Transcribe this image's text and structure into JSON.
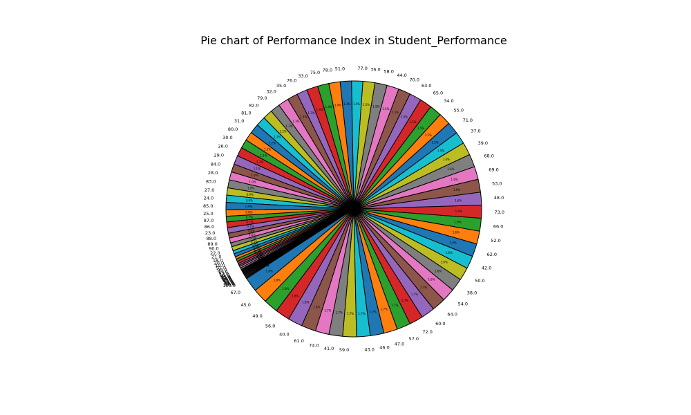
{
  "chart_data": {
    "type": "pie",
    "title": "Pie chart of Performance Index in Student_Performance",
    "counts_note": "",
    "categories": [
      "67.0",
      "45.0",
      "49.0",
      "56.0",
      "40.0",
      "61.0",
      "74.0",
      "41.0",
      "59.0",
      "43.0",
      "46.0",
      "47.0",
      "57.0",
      "72.0",
      "60.0",
      "64.0",
      "54.0",
      "38.0",
      "50.0",
      "42.0",
      "62.0",
      "52.0",
      "66.0",
      "73.0",
      "48.0",
      "53.0",
      "69.0",
      "68.0",
      "39.0",
      "37.0",
      "71.0",
      "55.0",
      "34.0",
      "65.0",
      "63.0",
      "70.0",
      "44.0",
      "58.0",
      "36.0",
      "77.0",
      "51.0",
      "78.0",
      "75.0",
      "33.0",
      "76.0",
      "35.0",
      "32.0",
      "79.0",
      "82.0",
      "81.0",
      "31.0",
      "80.0",
      "30.0",
      "26.0",
      "29.0",
      "84.0",
      "28.0",
      "83.0",
      "27.0",
      "24.0",
      "85.0",
      "25.0",
      "87.0",
      "86.0",
      "23.0",
      "88.0",
      "89.0",
      "90.0",
      "22.0",
      "21.0",
      "18.0",
      "20.0",
      "19.0",
      "91.0",
      "92.0",
      "17.0",
      "93.0",
      "16.0",
      "94.0",
      "15.0",
      "95.0",
      "14.0",
      "96.0",
      "13.0",
      "97.0",
      "12.0",
      "98.0",
      "11.0",
      "99.0",
      "10.0",
      "100.0"
    ],
    "values": [
      1.8,
      1.8,
      1.8,
      1.8,
      1.8,
      1.8,
      1.7,
      1.7,
      1.7,
      1.7,
      1.7,
      1.7,
      1.7,
      1.7,
      1.7,
      1.7,
      1.6,
      1.6,
      1.6,
      1.6,
      1.6,
      1.6,
      1.6,
      1.6,
      1.6,
      1.6,
      1.6,
      1.6,
      1.6,
      1.5,
      1.5,
      1.5,
      1.5,
      1.5,
      1.5,
      1.5,
      1.5,
      1.5,
      1.5,
      1.4,
      1.4,
      1.4,
      1.4,
      1.4,
      1.3,
      1.3,
      1.3,
      1.2,
      1.2,
      1.2,
      1.2,
      1.1,
      1.1,
      1.1,
      1.1,
      1.0,
      1.0,
      1.0,
      0.9,
      0.9,
      0.9,
      0.8,
      0.7,
      0.7,
      0.7,
      0.6,
      0.6,
      0.5,
      0.5,
      0.4,
      0.4,
      0.3,
      0.3,
      0.3,
      0.2,
      0.2,
      0.2,
      0.2,
      0.1,
      0.1,
      0.1,
      0.1,
      0.1,
      0.1,
      0.1,
      0.1,
      0.1,
      0.1,
      0.1,
      0.1,
      0.1
    ],
    "pct_labels": [
      "1.8%",
      "1.8%",
      "1.8%",
      "1.8%",
      "1.8%",
      "1.8%",
      "1.7%",
      "1.7%",
      "1.7%",
      "1.7%",
      "1.7%",
      "1.7%",
      "1.7%",
      "1.7%",
      "1.7%",
      "1.7%",
      "1.6%",
      "1.6%",
      "1.6%",
      "1.6%",
      "1.6%",
      "1.6%",
      "1.6%",
      "1.6%",
      "1.6%",
      "1.6%",
      "1.6%",
      "1.6%",
      "1.6%",
      "1.5%",
      "1.5%",
      "1.5%",
      "1.5%",
      "1.5%",
      "1.5%",
      "1.5%",
      "1.5%",
      "1.5%",
      "1.5%",
      "1.4%",
      "1.4%",
      "1.4%",
      "1.4%",
      "1.4%",
      "1.3%",
      "1.3%",
      "1.3%",
      "1.2%",
      "1.2%",
      "1.2%",
      "1.2%",
      "1.1%",
      "1.1%",
      "1.1%",
      "1.1%",
      "1.0%",
      "1.0%",
      "1.0%",
      "0.9%",
      "0.9%",
      "0.9%",
      "0.8%",
      "0.7%",
      "0.7%",
      "0.7%",
      "0.6%",
      "0.6%",
      "0.5%",
      "0.5%",
      "0.4%",
      "0.4%",
      "0.3%",
      "0.3%",
      "0.3%",
      "0.2%",
      "0.2%",
      "0.2%",
      "0.2%",
      "0.1%",
      "0.1%",
      "0.1%",
      "0.1%",
      "0.1%",
      "0.1%",
      "0.1%",
      "0.1%",
      "0.1%",
      "0.1%",
      "0.1%",
      "0.1%",
      "0.1%"
    ],
    "start_label": "67.0",
    "direction": "counterclockwise",
    "colors": [
      "#1f77b4",
      "#ff7f0e",
      "#2ca02c",
      "#d62728",
      "#9467bd",
      "#8c564b",
      "#e377c2",
      "#7f7f7f",
      "#bcbd22",
      "#17becf"
    ],
    "edge_color": "#000000",
    "legend": "none"
  }
}
